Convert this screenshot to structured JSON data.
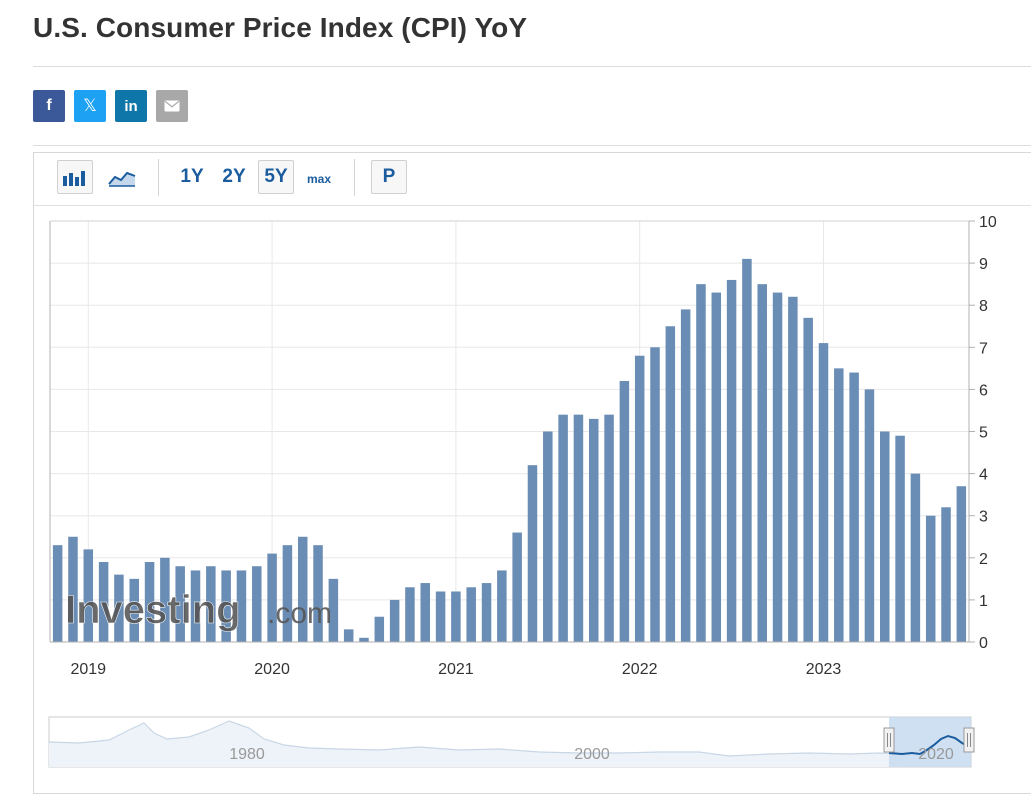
{
  "page": {
    "title": "U.S. Consumer Price Index (CPI) YoY"
  },
  "share": {
    "facebook": {
      "glyph": "f",
      "color": "#3b5998",
      "icon": "facebook-icon"
    },
    "twitter": {
      "glyph": "𝕏",
      "color": "#1da1f2",
      "icon": "x-twitter-icon"
    },
    "linkedin": {
      "glyph": "in",
      "color": "#0e76a8",
      "icon": "linkedin-icon"
    },
    "email": {
      "color": "#a8a8a8",
      "icon": "envelope-icon"
    }
  },
  "toolbar": {
    "chart_type_buttons": [
      "bar-chart-icon",
      "area-chart-icon"
    ],
    "ranges": [
      "1Y",
      "2Y",
      "5Y",
      "max"
    ],
    "selected_range": "5Y",
    "p_label": "P"
  },
  "colors": {
    "bar": "#6a8db5",
    "bar_light": "#b4c7dc",
    "grid": "#e8e8e8",
    "navigator_line": "#1a5c9e",
    "navigator_fill": "#c7dbf0"
  },
  "watermark": {
    "brand": "Investing",
    "suffix": ".com"
  },
  "chart_data": {
    "type": "bar",
    "title": "U.S. Consumer Price Index (CPI) YoY",
    "xlabel": "",
    "ylabel": "",
    "ylim": [
      0,
      10
    ],
    "yticks": [
      0,
      1,
      2,
      3,
      4,
      5,
      6,
      7,
      8,
      9,
      10
    ],
    "y_axis_side": "right",
    "grid": true,
    "x_start": "2018-11",
    "x_tick_labels": [
      "2019",
      "2020",
      "2021",
      "2022",
      "2023"
    ],
    "series": [
      {
        "values": [
          2.3,
          2.5,
          2.2,
          1.9,
          1.6,
          1.5,
          1.9,
          2.0,
          1.8,
          1.7,
          1.8,
          1.7,
          1.7,
          1.8,
          2.1,
          2.3,
          2.5,
          2.3,
          1.5,
          0.3,
          0.1,
          0.6,
          1.0,
          1.3,
          1.4,
          1.2,
          1.2,
          1.3,
          1.4,
          1.7,
          2.6,
          4.2,
          5.0,
          5.4,
          5.4,
          5.3,
          5.4,
          6.2,
          6.8,
          7.0,
          7.5,
          7.9,
          8.5,
          8.3,
          8.6,
          9.1,
          8.5,
          8.3,
          8.2,
          7.7,
          7.1,
          6.5,
          6.4,
          6.0,
          5.0,
          4.9,
          4.0,
          3.0,
          3.2,
          3.7
        ]
      }
    ],
    "navigator": {
      "x_tick_labels": [
        "1980",
        "2000",
        "2020"
      ]
    }
  }
}
